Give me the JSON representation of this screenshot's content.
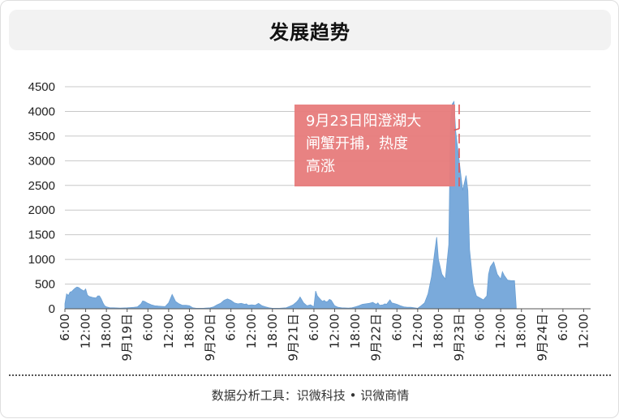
{
  "title": "发展趋势",
  "footer": {
    "source_label": "数据分析工具：",
    "source_a": "识微科技",
    "separator": "•",
    "source_b": "识微商情"
  },
  "colors": {
    "area": "#7aaadb",
    "gridline": "#c8c8c8",
    "annotation_fill": "#e77b7b",
    "annotation_line": "#e05555",
    "axis_text": "#222222"
  },
  "chart_data": {
    "type": "area",
    "title": "",
    "xlabel": "",
    "ylabel": "",
    "ylim": [
      0,
      4500
    ],
    "yticks": [
      0,
      500,
      1000,
      1500,
      2000,
      2500,
      3000,
      3500,
      4000,
      4500
    ],
    "grid": true,
    "x_ticks": [
      {
        "label": "6:00",
        "hour": 6
      },
      {
        "label": "12:00",
        "hour": 12
      },
      {
        "label": "18:00",
        "hour": 18
      },
      {
        "label": "9月19日",
        "hour": 24
      },
      {
        "label": "6:00",
        "hour": 30
      },
      {
        "label": "12:00",
        "hour": 36
      },
      {
        "label": "18:00",
        "hour": 42
      },
      {
        "label": "9月20日",
        "hour": 48
      },
      {
        "label": "6:00",
        "hour": 54
      },
      {
        "label": "12:00",
        "hour": 60
      },
      {
        "label": "18:00",
        "hour": 66
      },
      {
        "label": "9月21日",
        "hour": 72
      },
      {
        "label": "6:00",
        "hour": 78
      },
      {
        "label": "12:00",
        "hour": 84
      },
      {
        "label": "18:00",
        "hour": 90
      },
      {
        "label": "9月22日",
        "hour": 96
      },
      {
        "label": "6:00",
        "hour": 102
      },
      {
        "label": "12:00",
        "hour": 108
      },
      {
        "label": "18:00",
        "hour": 114
      },
      {
        "label": "9月23日",
        "hour": 120
      },
      {
        "label": "6:00",
        "hour": 126
      },
      {
        "label": "12:00",
        "hour": 132
      },
      {
        "label": "18:00",
        "hour": 138
      },
      {
        "label": "9月24日",
        "hour": 144
      },
      {
        "label": "6:00",
        "hour": 150
      },
      {
        "label": "12:00",
        "hour": 156
      }
    ],
    "series": [
      {
        "points": [
          [
            6,
            100
          ],
          [
            6.5,
            300
          ],
          [
            7,
            270
          ],
          [
            7.5,
            340
          ],
          [
            8,
            350
          ],
          [
            8.5,
            390
          ],
          [
            9,
            420
          ],
          [
            9.5,
            440
          ],
          [
            10,
            430
          ],
          [
            10.5,
            400
          ],
          [
            11,
            380
          ],
          [
            11.5,
            360
          ],
          [
            12,
            400
          ],
          [
            12.5,
            280
          ],
          [
            13,
            250
          ],
          [
            14,
            230
          ],
          [
            15,
            220
          ],
          [
            15.5,
            260
          ],
          [
            16,
            260
          ],
          [
            16.5,
            200
          ],
          [
            17,
            120
          ],
          [
            17.5,
            60
          ],
          [
            18,
            40
          ],
          [
            19,
            20
          ],
          [
            20,
            20
          ],
          [
            22,
            15
          ],
          [
            24,
            20
          ],
          [
            25,
            25
          ],
          [
            26,
            30
          ],
          [
            27,
            40
          ],
          [
            28,
            100
          ],
          [
            28.5,
            160
          ],
          [
            29,
            150
          ],
          [
            30,
            110
          ],
          [
            31,
            80
          ],
          [
            32,
            60
          ],
          [
            33,
            55
          ],
          [
            34,
            50
          ],
          [
            35,
            45
          ],
          [
            36,
            120
          ],
          [
            37,
            290
          ],
          [
            37.5,
            220
          ],
          [
            38,
            150
          ],
          [
            39,
            100
          ],
          [
            40,
            70
          ],
          [
            41,
            70
          ],
          [
            42,
            60
          ],
          [
            43,
            20
          ],
          [
            44,
            10
          ],
          [
            46,
            10
          ],
          [
            48,
            20
          ],
          [
            49,
            40
          ],
          [
            50,
            80
          ],
          [
            51,
            110
          ],
          [
            52,
            170
          ],
          [
            53,
            200
          ],
          [
            54,
            170
          ],
          [
            55,
            120
          ],
          [
            56,
            100
          ],
          [
            57,
            110
          ],
          [
            58,
            90
          ],
          [
            58.5,
            100
          ],
          [
            59,
            70
          ],
          [
            60,
            80
          ],
          [
            61,
            70
          ],
          [
            62,
            110
          ],
          [
            63,
            60
          ],
          [
            64,
            40
          ],
          [
            65,
            20
          ],
          [
            66,
            10
          ],
          [
            68,
            10
          ],
          [
            70,
            20
          ],
          [
            71,
            50
          ],
          [
            72,
            80
          ],
          [
            73,
            140
          ],
          [
            73.5,
            180
          ],
          [
            74,
            240
          ],
          [
            75,
            120
          ],
          [
            76,
            60
          ],
          [
            77,
            80
          ],
          [
            77.5,
            60
          ],
          [
            78,
            40
          ],
          [
            78.5,
            360
          ],
          [
            79,
            260
          ],
          [
            80,
            180
          ],
          [
            80.5,
            150
          ],
          [
            81,
            170
          ],
          [
            81.5,
            140
          ],
          [
            82,
            150
          ],
          [
            82.5,
            190
          ],
          [
            83,
            170
          ],
          [
            84,
            60
          ],
          [
            85,
            30
          ],
          [
            86,
            20
          ],
          [
            88,
            15
          ],
          [
            89,
            20
          ],
          [
            90,
            40
          ],
          [
            91,
            60
          ],
          [
            92,
            90
          ],
          [
            93,
            100
          ],
          [
            94,
            110
          ],
          [
            94.5,
            120
          ],
          [
            95,
            130
          ],
          [
            95.5,
            110
          ],
          [
            96,
            90
          ],
          [
            96.5,
            120
          ],
          [
            97,
            70
          ],
          [
            98,
            80
          ],
          [
            98.5,
            100
          ],
          [
            99,
            90
          ],
          [
            100,
            180
          ],
          [
            100.5,
            120
          ],
          [
            101,
            110
          ],
          [
            102,
            90
          ],
          [
            103,
            60
          ],
          [
            104,
            40
          ],
          [
            105,
            30
          ],
          [
            106,
            30
          ],
          [
            107,
            20
          ],
          [
            108,
            10
          ],
          [
            109,
            60
          ],
          [
            110,
            120
          ],
          [
            111,
            300
          ],
          [
            112,
            650
          ],
          [
            113,
            1200
          ],
          [
            113.5,
            1450
          ],
          [
            114,
            1000
          ],
          [
            115,
            700
          ],
          [
            116,
            600
          ],
          [
            117,
            1300
          ],
          [
            117.5,
            3800
          ],
          [
            118,
            4150
          ],
          [
            118.5,
            4200
          ],
          [
            119,
            3600
          ],
          [
            120,
            3000
          ],
          [
            121,
            2400
          ],
          [
            122,
            2700
          ],
          [
            122.5,
            2400
          ],
          [
            123,
            1200
          ],
          [
            124,
            500
          ],
          [
            125,
            260
          ],
          [
            126,
            220
          ],
          [
            127,
            180
          ],
          [
            128,
            260
          ],
          [
            128.5,
            700
          ],
          [
            129,
            850
          ],
          [
            130,
            950
          ],
          [
            131,
            700
          ],
          [
            132,
            600
          ],
          [
            132.5,
            750
          ],
          [
            133,
            680
          ],
          [
            134,
            580
          ],
          [
            135,
            570
          ],
          [
            136,
            570
          ],
          [
            136.5,
            40
          ]
        ]
      }
    ],
    "annotation": {
      "text": "9月23日阳澄湖大闸蟹开捕，热度高涨",
      "lines": [
        "9月23日阳澄湖大",
        "闸蟹开捕，热度",
        "高涨"
      ],
      "event_hour": 120,
      "points_to": [
        118.5,
        3620
      ]
    }
  }
}
